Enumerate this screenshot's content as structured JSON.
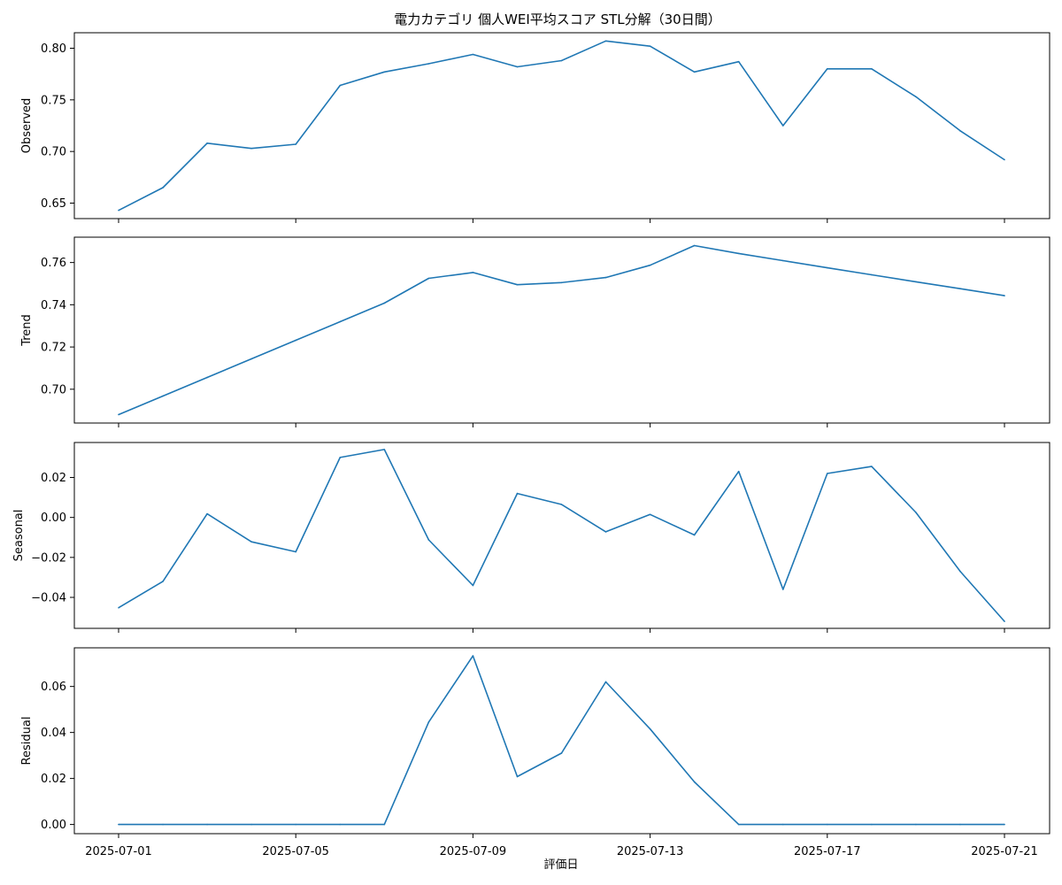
{
  "title": "電力カテゴリ 個人WEI平均スコア STL分解（30日間）",
  "xlabel": "評価日",
  "chart_data": [
    {
      "type": "line",
      "ylabel": "Observed",
      "x": [
        "2025-07-01",
        "2025-07-02",
        "2025-07-03",
        "2025-07-04",
        "2025-07-05",
        "2025-07-06",
        "2025-07-07",
        "2025-07-08",
        "2025-07-09",
        "2025-07-10",
        "2025-07-11",
        "2025-07-12",
        "2025-07-13",
        "2025-07-14",
        "2025-07-15",
        "2025-07-16",
        "2025-07-17",
        "2025-07-18",
        "2025-07-19",
        "2025-07-20",
        "2025-07-21"
      ],
      "values": [
        0.643,
        0.665,
        0.708,
        0.703,
        0.707,
        0.764,
        0.777,
        0.785,
        0.794,
        0.782,
        0.788,
        0.807,
        0.802,
        0.777,
        0.787,
        0.725,
        0.78,
        0.78,
        0.753,
        0.72,
        0.692
      ],
      "yticks": [
        "0.65",
        "0.70",
        "0.75",
        "0.80"
      ],
      "ylim": [
        0.635,
        0.815
      ],
      "xticks": [
        "2025-07-01",
        "2025-07-05",
        "2025-07-09",
        "2025-07-13",
        "2025-07-17",
        "2025-07-21"
      ]
    },
    {
      "type": "line",
      "ylabel": "Trend",
      "x": [
        "2025-07-01",
        "2025-07-02",
        "2025-07-03",
        "2025-07-04",
        "2025-07-05",
        "2025-07-06",
        "2025-07-07",
        "2025-07-08",
        "2025-07-09",
        "2025-07-10",
        "2025-07-11",
        "2025-07-12",
        "2025-07-13",
        "2025-07-14",
        "2025-07-15",
        "2025-07-16",
        "2025-07-17",
        "2025-07-18",
        "2025-07-19",
        "2025-07-20",
        "2025-07-21"
      ],
      "values": [
        0.688,
        0.6968,
        0.7056,
        0.7144,
        0.7232,
        0.732,
        0.7408,
        0.7525,
        0.7553,
        0.7495,
        0.7505,
        0.7529,
        0.7587,
        0.768,
        0.7643,
        0.7609,
        0.7575,
        0.7542,
        0.7509,
        0.7476,
        0.7443
      ],
      "yticks": [
        "0.70",
        "0.72",
        "0.74",
        "0.76"
      ],
      "ylim": [
        0.684,
        0.772
      ],
      "xticks": [
        "2025-07-01",
        "2025-07-05",
        "2025-07-09",
        "2025-07-13",
        "2025-07-17",
        "2025-07-21"
      ]
    },
    {
      "type": "line",
      "ylabel": "Seasonal",
      "x": [
        "2025-07-01",
        "2025-07-02",
        "2025-07-03",
        "2025-07-04",
        "2025-07-05",
        "2025-07-06",
        "2025-07-07",
        "2025-07-08",
        "2025-07-09",
        "2025-07-10",
        "2025-07-11",
        "2025-07-12",
        "2025-07-13",
        "2025-07-14",
        "2025-07-15",
        "2025-07-16",
        "2025-07-17",
        "2025-07-18",
        "2025-07-19",
        "2025-07-20",
        "2025-07-21"
      ],
      "values": [
        -0.0452,
        -0.032,
        0.0018,
        -0.0122,
        -0.0172,
        0.03,
        0.034,
        -0.0112,
        -0.034,
        0.012,
        0.0065,
        -0.0072,
        0.0015,
        -0.0088,
        0.023,
        -0.036,
        0.022,
        0.0255,
        0.0025,
        -0.027,
        -0.052
      ],
      "yticks": [
        "−0.04",
        "−0.02",
        "0.00",
        "0.02"
      ],
      "ylim": [
        -0.0555,
        0.0375
      ],
      "xticks": [
        "2025-07-01",
        "2025-07-05",
        "2025-07-09",
        "2025-07-13",
        "2025-07-17",
        "2025-07-21"
      ]
    },
    {
      "type": "line",
      "ylabel": "Residual",
      "x": [
        "2025-07-01",
        "2025-07-02",
        "2025-07-03",
        "2025-07-04",
        "2025-07-05",
        "2025-07-06",
        "2025-07-07",
        "2025-07-08",
        "2025-07-09",
        "2025-07-10",
        "2025-07-11",
        "2025-07-12",
        "2025-07-13",
        "2025-07-14",
        "2025-07-15",
        "2025-07-16",
        "2025-07-17",
        "2025-07-18",
        "2025-07-19",
        "2025-07-20",
        "2025-07-21"
      ],
      "values": [
        0,
        0,
        0,
        0,
        0,
        0,
        0,
        0.0445,
        0.0733,
        0.0208,
        0.031,
        0.062,
        0.0415,
        0.0185,
        0,
        0,
        0,
        0,
        0,
        0,
        0
      ],
      "yticks": [
        "0.00",
        "0.02",
        "0.04",
        "0.06"
      ],
      "ylim": [
        -0.004,
        0.0768
      ],
      "xticks": [
        "2025-07-01",
        "2025-07-05",
        "2025-07-09",
        "2025-07-13",
        "2025-07-17",
        "2025-07-21"
      ]
    }
  ]
}
